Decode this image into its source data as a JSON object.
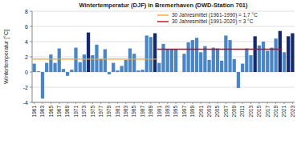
{
  "chart_data": {
    "type": "bar",
    "title": "Wintertemperatur (DJF) in Bremerhaven (DWD-Station 701)",
    "y_label": "Wintertemperatur [°C]",
    "categories": [
      "1961",
      null,
      "1963",
      null,
      "1965",
      null,
      "1967",
      null,
      "1969",
      null,
      "1971",
      null,
      "1973",
      null,
      "1975",
      null,
      "1977",
      null,
      "1979",
      null,
      "1981",
      null,
      "1983",
      null,
      "1985",
      null,
      "1987",
      null,
      "1989",
      null,
      "1991",
      null,
      "1993",
      null,
      "1995",
      null,
      "1997",
      null,
      "1999",
      null,
      "2001",
      null,
      "2003",
      null,
      "2005",
      null,
      "2007",
      null,
      "2009",
      null,
      "2011",
      null,
      "2013",
      null,
      "2015",
      null,
      "2017",
      null,
      "2019",
      null,
      "2021",
      null,
      "2023"
    ],
    "series": [
      {
        "type": "bar",
        "values": [
          1.1,
          0.1,
          -3.5,
          1.2,
          2.3,
          1.2,
          3.1,
          0.4,
          -0.5,
          0.3,
          3.2,
          1.3,
          2.3,
          5.2,
          2.2,
          3.6,
          1.7,
          3.0,
          -0.3,
          1.2,
          0.2,
          0.8,
          1.6,
          3.1,
          2.4,
          0.2,
          0.3,
          4.8,
          4.6,
          5.1,
          1.2,
          3.7,
          3.0,
          3.0,
          3.0,
          0.0,
          2.4,
          3.9,
          4.2,
          4.5,
          2.6,
          3.4,
          1.6,
          3.2,
          3.1,
          1.5,
          4.8,
          4.2,
          1.7,
          -2.1,
          1.1,
          3.1,
          2.2,
          4.7,
          3.5,
          4.0,
          2.8,
          3.2,
          4.4,
          5.4,
          2.6,
          4.7,
          5.1
        ],
        "colors": [
          "#4a86c5",
          "#4a86c5",
          "#4a86c5",
          "#4a86c5",
          "#4a86c5",
          "#4a86c5",
          "#4a86c5",
          "#4a86c5",
          "#4a86c5",
          "#4a86c5",
          "#4a86c5",
          "#4a86c5",
          "#4a86c5",
          "#14286e",
          "#4a86c5",
          "#4a86c5",
          "#4a86c5",
          "#4a86c5",
          "#4a86c5",
          "#4a86c5",
          "#4a86c5",
          "#4a86c5",
          "#4a86c5",
          "#4a86c5",
          "#4a86c5",
          "#4a86c5",
          "#4a86c5",
          "#4a86c5",
          "#4a86c5",
          "#14286e",
          "#4a86c5",
          "#4a86c5",
          "#4a86c5",
          "#4a86c5",
          "#4a86c5",
          "#4a86c5",
          "#4a86c5",
          "#4a86c5",
          "#4a86c5",
          "#4a86c5",
          "#4a86c5",
          "#4a86c5",
          "#4a86c5",
          "#4a86c5",
          "#4a86c5",
          "#4a86c5",
          "#4a86c5",
          "#4a86c5",
          "#4a86c5",
          "#4a86c5",
          "#4a86c5",
          "#4a86c5",
          "#4a86c5",
          "#14286e",
          "#4a86c5",
          "#4a86c5",
          "#4a86c5",
          "#4a86c5",
          "#4a86c5",
          "#14286e",
          "#4a86c5",
          "#14286e",
          "#14286e"
        ]
      },
      {
        "type": "line",
        "name": "30 Jahresmittel (1961-1990) = 1,7 °C",
        "color": "#f5a623",
        "values": [
          1.7,
          1.7,
          1.7,
          1.7,
          1.7,
          1.7,
          1.7,
          1.7,
          1.7,
          1.7,
          1.7,
          1.7,
          1.7,
          1.7,
          1.7,
          1.7,
          1.7,
          1.7,
          1.7,
          1.7,
          1.7,
          1.7,
          1.7,
          1.7,
          1.7,
          1.7,
          1.7,
          1.7,
          1.7,
          1.7,
          null,
          null,
          null,
          null,
          null,
          null,
          null,
          null,
          null,
          null,
          null,
          null,
          null,
          null,
          null,
          null,
          null,
          null,
          null,
          null,
          null,
          null,
          null,
          null,
          null,
          null,
          null,
          null,
          null,
          null,
          null,
          null,
          null
        ]
      },
      {
        "type": "line",
        "name": "30 Jahresmittel (1991-2020) = 3 °C",
        "color": "#d0021b",
        "values": [
          null,
          null,
          null,
          null,
          null,
          null,
          null,
          null,
          null,
          null,
          null,
          null,
          null,
          null,
          null,
          null,
          null,
          null,
          null,
          null,
          null,
          null,
          null,
          null,
          null,
          null,
          null,
          null,
          null,
          null,
          3,
          3,
          3,
          3,
          3,
          3,
          3,
          3,
          3,
          3,
          3,
          3,
          3,
          3,
          3,
          3,
          3,
          3,
          3,
          3,
          3,
          3,
          3,
          3,
          3,
          3,
          3,
          3,
          3,
          3,
          null,
          null,
          null
        ]
      }
    ],
    "ylim": [
      -4,
      8
    ],
    "yticks": [
      -4,
      -2,
      0,
      2,
      4,
      6,
      8
    ],
    "grid": true,
    "legend": "top"
  }
}
